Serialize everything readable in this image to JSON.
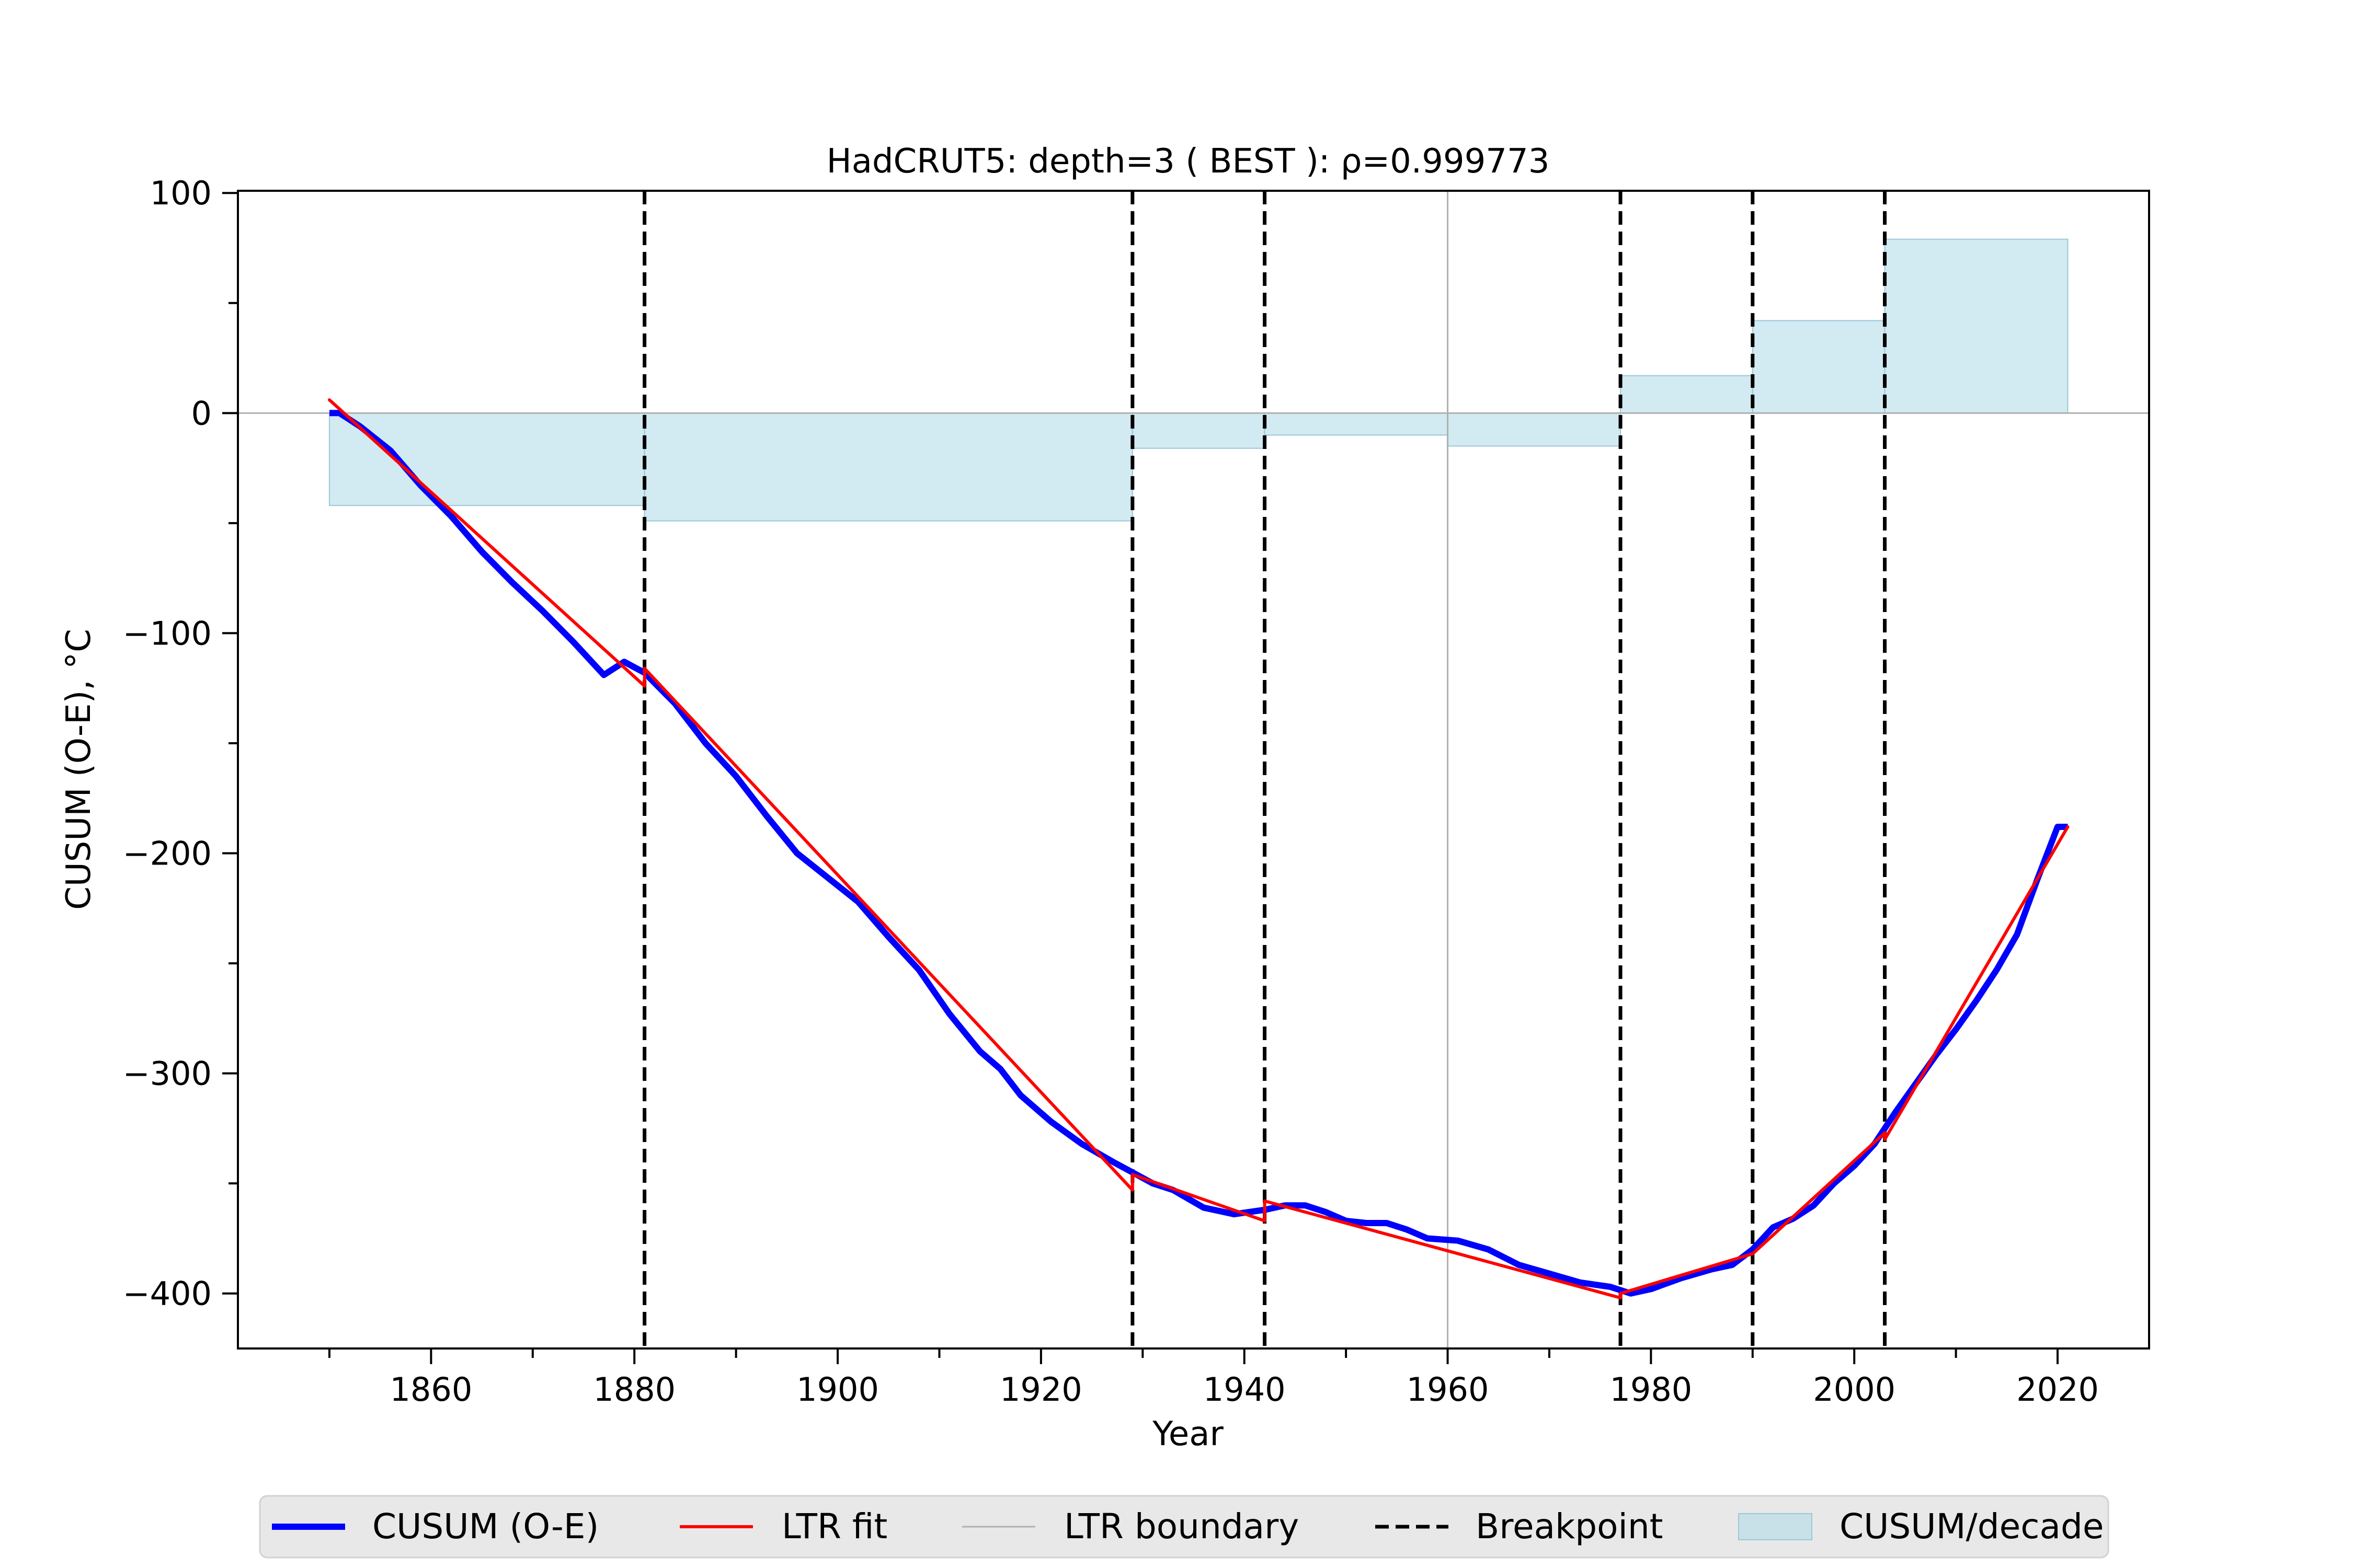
{
  "chart_data": {
    "type": "line",
    "title": "HadCRUT5: depth=3 ( BEST ): ρ=0.999773",
    "xlabel": "Year",
    "ylabel": "CUSUM (O-E), °C",
    "xlim": [
      1841,
      2029
    ],
    "ylim": [
      -425,
      101
    ],
    "x_ticks": [
      1860,
      1880,
      1900,
      1920,
      1940,
      1960,
      1980,
      2000,
      2020
    ],
    "x_tick_labels": [
      "1860",
      "1880",
      "1900",
      "1920",
      "1940",
      "1960",
      "1980",
      "2000",
      "2020"
    ],
    "y_ticks": [
      100,
      0,
      -100,
      -200,
      -300,
      -400
    ],
    "y_tick_labels": [
      "100",
      "0",
      "−100",
      "−200",
      "−300",
      "−400"
    ],
    "grid": false,
    "legend_position": "bottom, outside",
    "legend": [
      {
        "label": "CUSUM (O-E)",
        "kind": "line",
        "color": "#0000ff"
      },
      {
        "label": "LTR fit",
        "kind": "line",
        "color": "#ff0000"
      },
      {
        "label": "LTR boundary",
        "kind": "thin-line",
        "color": "#b0b0b0"
      },
      {
        "label": "Breakpoint",
        "kind": "dashed-line",
        "color": "#000000"
      },
      {
        "label": "CUSUM/decade",
        "kind": "patch",
        "color": "#add8e6"
      }
    ],
    "colors": {
      "cusum": "#0000ff",
      "fit": "#ff0000",
      "boundary": "#b0b0b0",
      "breakpoint": "#000000",
      "bar": "#add8e6"
    },
    "series": [
      {
        "name": "CUSUM (O-E)",
        "x": [
          1850,
          1851,
          1853,
          1856,
          1859,
          1862,
          1865,
          1868,
          1871,
          1874,
          1877,
          1879,
          1881,
          1884,
          1887,
          1890,
          1893,
          1896,
          1899,
          1902,
          1905,
          1908,
          1911,
          1914,
          1916,
          1918,
          1921,
          1924,
          1927,
          1929,
          1931,
          1933,
          1936,
          1939,
          1942,
          1944,
          1946,
          1948,
          1950,
          1952,
          1954,
          1956,
          1958,
          1961,
          1964,
          1967,
          1970,
          1973,
          1976,
          1978,
          1980,
          1983,
          1986,
          1988,
          1990,
          1992,
          1994,
          1996,
          1998,
          2000,
          2002,
          2004,
          2006,
          2008,
          2010,
          2012,
          2014,
          2016,
          2018,
          2020,
          2021
        ],
        "y": [
          0,
          0,
          -6,
          -17,
          -33,
          -47,
          -63,
          -77,
          -90,
          -104,
          -119,
          -113,
          -118,
          -132,
          -150,
          -165,
          -183,
          -200,
          -211,
          -222,
          -238,
          -253,
          -273,
          -290,
          -298,
          -310,
          -322,
          -332,
          -340,
          -345,
          -350,
          -353,
          -361,
          -364,
          -362,
          -360,
          -360,
          -363,
          -367,
          -368,
          -368,
          -371,
          -375,
          -376,
          -380,
          -387,
          -391,
          -395,
          -397,
          -400,
          -398,
          -393,
          -389,
          -387,
          -380,
          -370,
          -366,
          -360,
          -350,
          -342,
          -332,
          -318,
          -305,
          -292,
          -280,
          -267,
          -253,
          -237,
          -212,
          -188,
          -188
        ]
      }
    ],
    "ltr_fit_segments": [
      {
        "x": [
          1850,
          1881
        ],
        "y": [
          6,
          -124
        ]
      },
      {
        "x": [
          1881,
          1929
        ],
        "y": [
          -116,
          -353
        ]
      },
      {
        "x": [
          1929,
          1942
        ],
        "y": [
          -346,
          -367
        ]
      },
      {
        "x": [
          1942,
          1977
        ],
        "y": [
          -358,
          -402
        ]
      },
      {
        "x": [
          1977,
          1990
        ],
        "y": [
          -400,
          -382
        ]
      },
      {
        "x": [
          1990,
          2003
        ],
        "y": [
          -382,
          -327
        ]
      },
      {
        "x": [
          2003,
          2021
        ],
        "y": [
          -330,
          -188
        ]
      }
    ],
    "breakpoints": [
      1881,
      1929,
      1942,
      1977,
      1990,
      2003
    ],
    "ltr_boundary_x": 1960,
    "cusum_per_decade": [
      {
        "x_start": 1850,
        "x_end": 1881,
        "value": -42
      },
      {
        "x_start": 1881,
        "x_end": 1929,
        "value": -49
      },
      {
        "x_start": 1929,
        "x_end": 1942,
        "value": -16
      },
      {
        "x_start": 1942,
        "x_end": 1960,
        "value": -10
      },
      {
        "x_start": 1960,
        "x_end": 1977,
        "value": -15
      },
      {
        "x_start": 1977,
        "x_end": 1990,
        "value": 17
      },
      {
        "x_start": 1990,
        "x_end": 2003,
        "value": 42
      },
      {
        "x_start": 2003,
        "x_end": 2021,
        "value": 79
      }
    ]
  }
}
